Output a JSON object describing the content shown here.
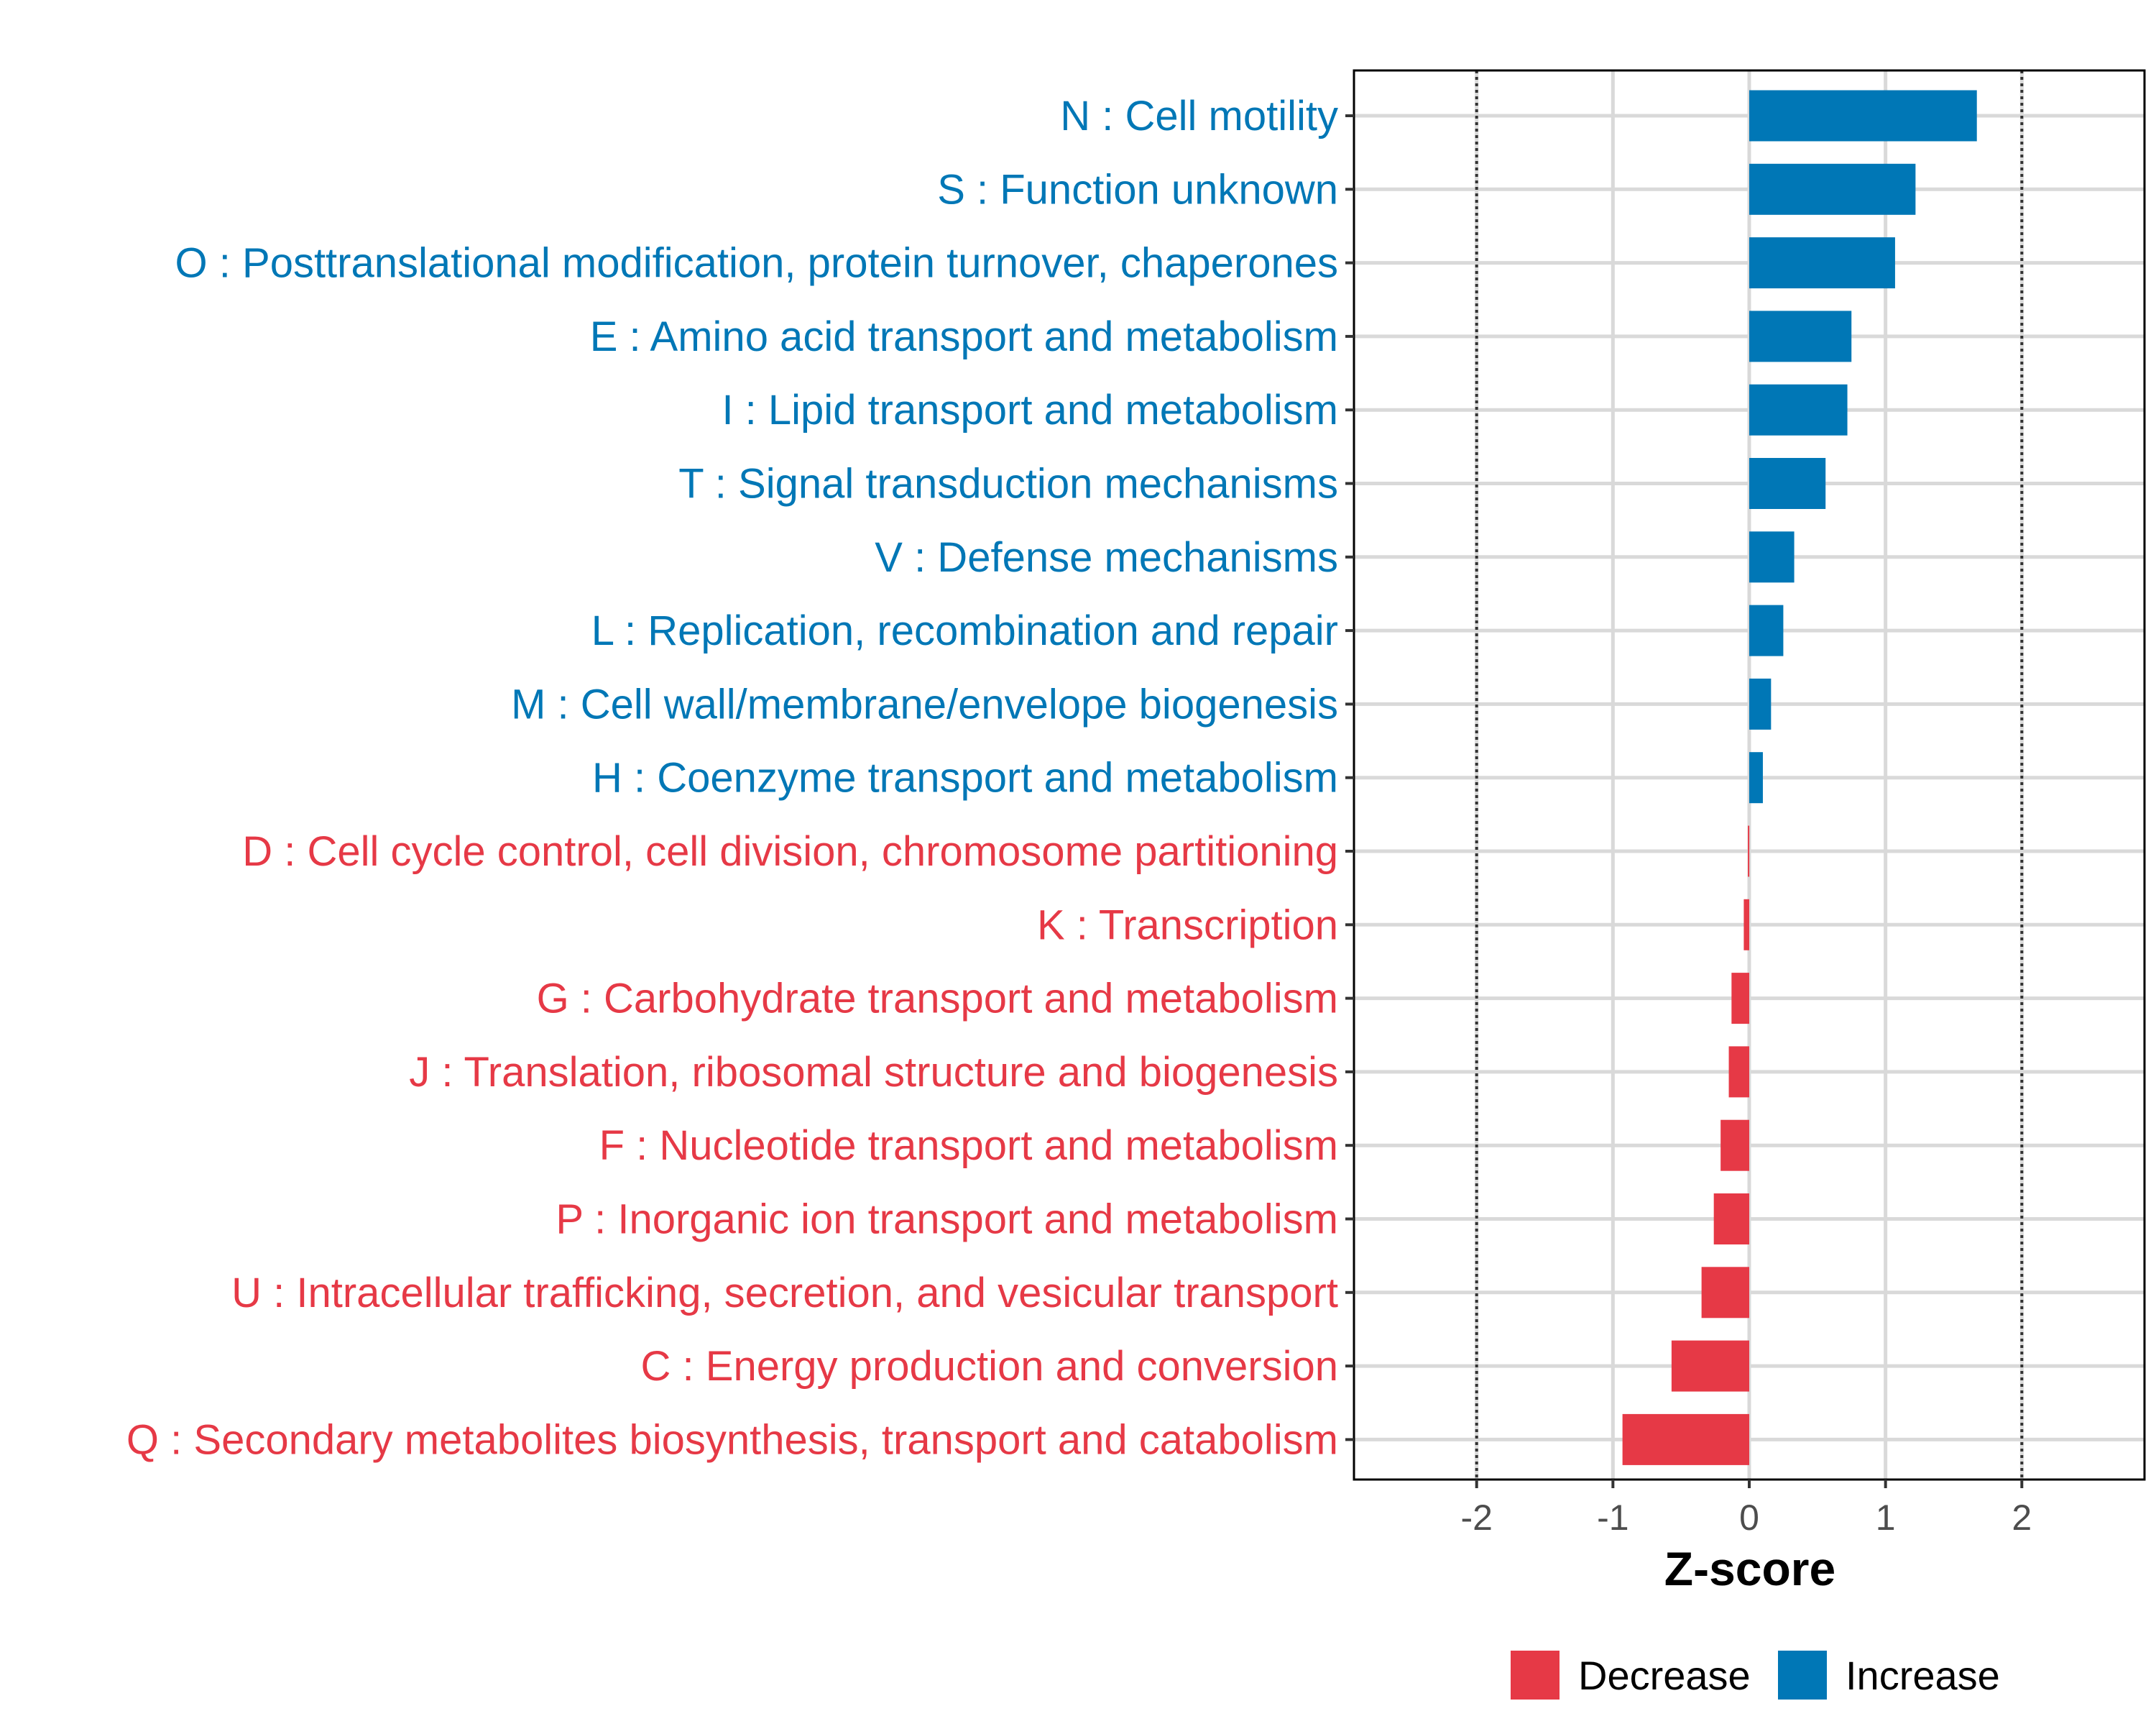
{
  "chart_data": {
    "type": "bar",
    "orientation": "horizontal",
    "xlabel": "Z-score",
    "xlim": [
      -2.9,
      2.9
    ],
    "xticks": [
      -2,
      -1,
      0,
      1,
      2
    ],
    "xtick_labels": [
      "-2",
      "-1",
      "0",
      "1",
      "2"
    ],
    "reference_lines": [
      -2,
      2
    ],
    "grid": true,
    "legend_position": "bottom",
    "legend": [
      {
        "key": "decrease",
        "label": "Decrease",
        "color": "#e63946"
      },
      {
        "key": "increase",
        "label": "Increase",
        "color": "#0077b6"
      }
    ],
    "categories": [
      {
        "label": "N : Cell motility",
        "value": 1.67,
        "group": "increase"
      },
      {
        "label": "S : Function unknown",
        "value": 1.22,
        "group": "increase"
      },
      {
        "label": "O : Posttranslational modification, protein turnover, chaperones",
        "value": 1.07,
        "group": "increase"
      },
      {
        "label": "E : Amino acid transport and metabolism",
        "value": 0.75,
        "group": "increase"
      },
      {
        "label": "I : Lipid transport and metabolism",
        "value": 0.72,
        "group": "increase"
      },
      {
        "label": "T : Signal transduction mechanisms",
        "value": 0.56,
        "group": "increase"
      },
      {
        "label": "V : Defense mechanisms",
        "value": 0.33,
        "group": "increase"
      },
      {
        "label": "L : Replication, recombination and repair",
        "value": 0.25,
        "group": "increase"
      },
      {
        "label": "M : Cell wall/membrane/envelope biogenesis",
        "value": 0.16,
        "group": "increase"
      },
      {
        "label": "H : Coenzyme transport and metabolism",
        "value": 0.1,
        "group": "increase"
      },
      {
        "label": "D : Cell cycle control, cell division, chromosome partitioning",
        "value": -0.01,
        "group": "decrease"
      },
      {
        "label": "K : Transcription",
        "value": -0.04,
        "group": "decrease"
      },
      {
        "label": "G : Carbohydrate transport and metabolism",
        "value": -0.13,
        "group": "decrease"
      },
      {
        "label": "J : Translation, ribosomal structure and biogenesis",
        "value": -0.15,
        "group": "decrease"
      },
      {
        "label": "F : Nucleotide transport and metabolism",
        "value": -0.21,
        "group": "decrease"
      },
      {
        "label": "P : Inorganic ion transport and metabolism",
        "value": -0.26,
        "group": "decrease"
      },
      {
        "label": "U : Intracellular trafficking, secretion, and vesicular transport",
        "value": -0.35,
        "group": "decrease"
      },
      {
        "label": "C : Energy production and conversion",
        "value": -0.57,
        "group": "decrease"
      },
      {
        "label": "Q : Secondary metabolites biosynthesis, transport and catabolism",
        "value": -0.93,
        "group": "decrease"
      }
    ]
  }
}
